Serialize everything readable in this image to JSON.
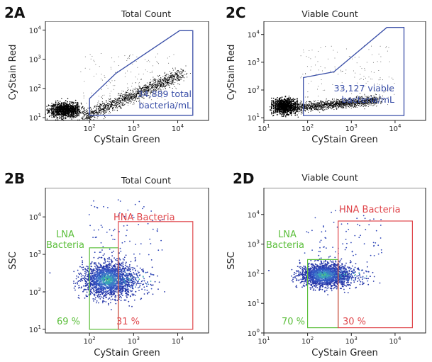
{
  "panels": [
    {
      "id": "2A",
      "label": "2A",
      "title": "Total Count",
      "xlabel": "CyStain Green",
      "ylabel": "CyStain Red",
      "x_ticks": [
        "10^2",
        "10^3",
        "10^4"
      ],
      "y_ticks": [
        "10^1",
        "10^2",
        "10^3",
        "10^4"
      ],
      "gates": [
        {
          "name": "bacteria-gate",
          "color": "#3a4fa8",
          "text": [
            "34,889 total",
            "bacteria/mL"
          ]
        }
      ]
    },
    {
      "id": "2C",
      "label": "2C",
      "title": "Viable Count",
      "xlabel": "CyStain Green",
      "ylabel": "CyStain Red",
      "x_ticks": [
        "10^1",
        "10^2",
        "10^3",
        "10^4"
      ],
      "y_ticks": [
        "10^1",
        "10^2",
        "10^3",
        "10^4"
      ],
      "gates": [
        {
          "name": "viable-gate",
          "color": "#3a4fa8",
          "text": [
            "33,127 viable",
            "bacteria/mL"
          ]
        }
      ]
    },
    {
      "id": "2B",
      "label": "2B",
      "title": "Total Count",
      "xlabel": "CyStain Green",
      "ylabel": "SSC",
      "x_ticks": [
        "10^2",
        "10^3",
        "10^4"
      ],
      "y_ticks": [
        "10^1",
        "10^2",
        "10^3",
        "10^4"
      ],
      "gates": [
        {
          "name": "lna-gate",
          "color": "#5cbf3c",
          "text": [
            "LNA",
            "Bacteria"
          ],
          "percent": "69 %"
        },
        {
          "name": "hna-gate",
          "color": "#e0474c",
          "text": [
            "HNA Bacteria"
          ],
          "percent": "31 %"
        }
      ]
    },
    {
      "id": "2D",
      "label": "2D",
      "title": "Viable Count",
      "xlabel": "CyStain Green",
      "ylabel": "SSC",
      "x_ticks": [
        "10^1",
        "10^2",
        "10^3",
        "10^4"
      ],
      "y_ticks": [
        "10^0",
        "10^1",
        "10^2",
        "10^3",
        "10^4"
      ],
      "gates": [
        {
          "name": "lna-gate",
          "color": "#5cbf3c",
          "text": [
            "LNA",
            "Bacteria"
          ],
          "percent": "70 %"
        },
        {
          "name": "hna-gate",
          "color": "#e0474c",
          "text": [
            "HNA Bacteria"
          ],
          "percent": "30 %"
        }
      ]
    }
  ],
  "chart_data": [
    {
      "type": "scatter",
      "panel": "2A",
      "title": "Total Count",
      "xlabel": "CyStain Green",
      "ylabel": "CyStain Red",
      "xscale": "log",
      "yscale": "log",
      "xlim": [
        10,
        50000
      ],
      "ylim": [
        8,
        20000
      ],
      "gate": {
        "label": "34,889 total bacteria/mL",
        "polygon": [
          [
            100,
            12
          ],
          [
            100,
            45
          ],
          [
            400,
            330
          ],
          [
            11000,
            9500
          ],
          [
            22000,
            9500
          ],
          [
            22000,
            12
          ]
        ]
      }
    },
    {
      "type": "scatter",
      "panel": "2C",
      "title": "Viable Count",
      "xlabel": "CyStain Green",
      "ylabel": "CyStain Red",
      "xscale": "log",
      "yscale": "log",
      "xlim": [
        10,
        50000
      ],
      "ylim": [
        8,
        30000
      ],
      "gate": {
        "label": "33,127 viable bacteria/mL",
        "polygon": [
          [
            80,
            12
          ],
          [
            80,
            280
          ],
          [
            400,
            450
          ],
          [
            6500,
            18000
          ],
          [
            16000,
            18000
          ],
          [
            16000,
            12
          ]
        ]
      }
    },
    {
      "type": "scatter",
      "panel": "2B",
      "title": "Total Count",
      "xlabel": "CyStain Green",
      "ylabel": "SSC",
      "xscale": "log",
      "yscale": "log",
      "xlim": [
        10,
        50000
      ],
      "ylim": [
        8,
        60000
      ],
      "gates": [
        {
          "name": "LNA Bacteria",
          "x": [
            100,
            450
          ],
          "y": [
            10,
            1500
          ],
          "percent": 69
        },
        {
          "name": "HNA Bacteria",
          "x": [
            450,
            22000
          ],
          "y": [
            10,
            7500
          ],
          "percent": 31
        }
      ]
    },
    {
      "type": "scatter",
      "panel": "2D",
      "title": "Viable Count",
      "xlabel": "CyStain Green",
      "ylabel": "SSC",
      "xscale": "log",
      "yscale": "log",
      "xlim": [
        10,
        50000
      ],
      "ylim": [
        1,
        80000
      ],
      "gates": [
        {
          "name": "LNA Bacteria",
          "x": [
            100,
            500
          ],
          "y": [
            1.5,
            300
          ],
          "percent": 70
        },
        {
          "name": "HNA Bacteria",
          "x": [
            500,
            25000
          ],
          "y": [
            1.5,
            6000
          ],
          "percent": 30
        }
      ]
    }
  ]
}
